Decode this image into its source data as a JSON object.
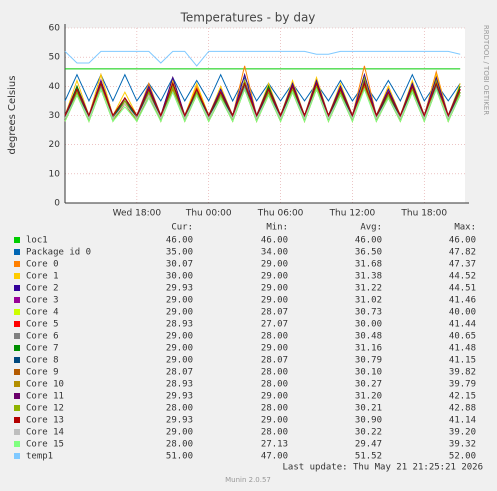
{
  "chart_data": {
    "type": "line",
    "title": "Temperatures - by day",
    "y_label": "degrees Celsius",
    "side_label": "RRDTOOL / TOBI OETIKER",
    "x": [
      0,
      1,
      2,
      3,
      4,
      5,
      6,
      7,
      8,
      9,
      10,
      11,
      12,
      13,
      14,
      15,
      16,
      17,
      18,
      19,
      20,
      21,
      22,
      23,
      24,
      25,
      26,
      27,
      28,
      29,
      30,
      31,
      32,
      33
    ],
    "xlim": [
      0,
      33.4
    ],
    "xticks": [
      {
        "value": 6,
        "label": "Wed 18:00"
      },
      {
        "value": 12,
        "label": "Thu 00:00"
      },
      {
        "value": 18,
        "label": "Thu 06:00"
      },
      {
        "value": 24,
        "label": "Thu 12:00"
      },
      {
        "value": 30,
        "label": "Thu 18:00"
      }
    ],
    "ylim": [
      0,
      60
    ],
    "yticks": [
      0,
      10,
      20,
      30,
      40,
      50,
      60
    ],
    "grid": true,
    "legend_headers": [
      "Cur:",
      "Min:",
      "Avg:",
      "Max:"
    ],
    "series": [
      {
        "name": "loc1",
        "color": "#00cc00",
        "cur": "46.00",
        "min": "46.00",
        "avg": "46.00",
        "max": "46.00",
        "values": [
          46,
          46,
          46,
          46,
          46,
          46,
          46,
          46,
          46,
          46,
          46,
          46,
          46,
          46,
          46,
          46,
          46,
          46,
          46,
          46,
          46,
          46,
          46,
          46,
          46,
          46,
          46,
          46,
          46,
          46,
          46,
          46,
          46,
          46
        ]
      },
      {
        "name": "Package id 0",
        "color": "#0066b3",
        "cur": "35.00",
        "min": "34.00",
        "avg": "36.50",
        "max": "47.82",
        "values": [
          35,
          44,
          35,
          44,
          35,
          44,
          35,
          41,
          35,
          43,
          35,
          42,
          35,
          44,
          35,
          43,
          35,
          41,
          35,
          41,
          35,
          41,
          35,
          42,
          35,
          41,
          35,
          42,
          35,
          44,
          35,
          41,
          35,
          41
        ]
      },
      {
        "name": "Core 0",
        "color": "#ff8000",
        "cur": "30.07",
        "min": "29.00",
        "avg": "31.68",
        "max": "47.37",
        "values": [
          30,
          40,
          30,
          44,
          30,
          35,
          30,
          41,
          30,
          43,
          30,
          40,
          30,
          39,
          30,
          47,
          30,
          40,
          30,
          41,
          30,
          42,
          30,
          40,
          30,
          47,
          30,
          40,
          30,
          41,
          30,
          45,
          30,
          40
        ]
      },
      {
        "name": "Core 1",
        "color": "#ffcc00",
        "cur": "30.00",
        "min": "29.00",
        "avg": "31.38",
        "max": "44.52",
        "values": [
          30,
          42,
          30,
          44,
          30,
          38,
          30,
          40,
          30,
          42,
          30,
          41,
          30,
          40,
          30,
          44,
          30,
          41,
          30,
          42,
          30,
          43,
          30,
          41,
          30,
          44,
          30,
          40,
          30,
          42,
          30,
          44,
          30,
          41
        ]
      },
      {
        "name": "Core 2",
        "color": "#330099",
        "cur": "29.93",
        "min": "29.00",
        "avg": "31.22",
        "max": "44.51",
        "values": [
          30,
          40,
          30,
          42,
          30,
          36,
          30,
          40,
          30,
          43,
          30,
          39,
          30,
          39,
          30,
          44,
          30,
          40,
          30,
          41,
          30,
          42,
          30,
          40,
          30,
          44,
          30,
          39,
          30,
          41,
          30,
          43,
          30,
          40
        ]
      },
      {
        "name": "Core 3",
        "color": "#990099",
        "cur": "29.00",
        "min": "29.00",
        "avg": "31.02",
        "max": "41.46",
        "values": [
          29,
          39,
          29,
          41,
          29,
          36,
          29,
          38,
          29,
          41,
          29,
          39,
          29,
          38,
          29,
          41,
          29,
          39,
          29,
          40,
          29,
          41,
          29,
          39,
          29,
          41,
          29,
          38,
          29,
          40,
          29,
          41,
          29,
          39
        ]
      },
      {
        "name": "Core 4",
        "color": "#ccff00",
        "cur": "29.00",
        "min": "28.07",
        "avg": "30.73",
        "max": "40.00",
        "values": [
          29,
          37,
          29,
          39,
          29,
          34,
          29,
          37,
          29,
          39,
          29,
          38,
          29,
          37,
          29,
          40,
          29,
          38,
          29,
          38,
          29,
          39,
          29,
          38,
          29,
          40,
          29,
          37,
          29,
          38,
          29,
          40,
          29,
          38
        ]
      },
      {
        "name": "Core 5",
        "color": "#ff0000",
        "cur": "28.93",
        "min": "27.07",
        "avg": "30.00",
        "max": "41.44",
        "values": [
          29,
          39,
          29,
          41,
          29,
          36,
          29,
          39,
          29,
          41,
          29,
          38,
          29,
          38,
          29,
          41,
          29,
          39,
          29,
          40,
          29,
          41,
          29,
          39,
          29,
          41,
          29,
          38,
          29,
          40,
          29,
          41,
          29,
          39
        ]
      },
      {
        "name": "Core 6",
        "color": "#808080",
        "cur": "29.00",
        "min": "28.00",
        "avg": "30.48",
        "max": "40.65",
        "values": [
          29,
          38,
          29,
          40,
          29,
          35,
          29,
          38,
          29,
          40,
          29,
          38,
          29,
          37,
          29,
          40,
          29,
          38,
          29,
          39,
          29,
          40,
          29,
          38,
          29,
          40,
          29,
          37,
          29,
          39,
          29,
          40,
          29,
          38
        ]
      },
      {
        "name": "Core 7",
        "color": "#008f00",
        "cur": "29.00",
        "min": "29.00",
        "avg": "31.16",
        "max": "41.48",
        "values": [
          29,
          40,
          29,
          41,
          29,
          36,
          29,
          39,
          29,
          41,
          29,
          39,
          29,
          38,
          29,
          41,
          29,
          40,
          29,
          40,
          29,
          41,
          29,
          39,
          29,
          41,
          29,
          38,
          29,
          40,
          29,
          41,
          29,
          40
        ]
      },
      {
        "name": "Core 8",
        "color": "#00487d",
        "cur": "29.00",
        "min": "28.07",
        "avg": "30.79",
        "max": "41.15",
        "values": [
          29,
          38,
          29,
          41,
          29,
          35,
          29,
          38,
          29,
          40,
          29,
          38,
          29,
          37,
          29,
          41,
          29,
          38,
          29,
          39,
          29,
          40,
          29,
          38,
          29,
          41,
          29,
          37,
          29,
          39,
          29,
          41,
          29,
          38
        ]
      },
      {
        "name": "Core 9",
        "color": "#b35a00",
        "cur": "28.07",
        "min": "28.00",
        "avg": "30.10",
        "max": "39.82",
        "values": [
          28,
          37,
          28,
          39,
          28,
          34,
          28,
          37,
          28,
          39,
          28,
          37,
          28,
          36,
          28,
          39,
          28,
          37,
          28,
          38,
          28,
          39,
          28,
          37,
          28,
          40,
          28,
          36,
          28,
          38,
          28,
          39,
          28,
          37
        ]
      },
      {
        "name": "Core 10",
        "color": "#b38f00",
        "cur": "28.93",
        "min": "28.00",
        "avg": "30.27",
        "max": "39.79",
        "values": [
          29,
          37,
          29,
          39,
          29,
          34,
          29,
          37,
          29,
          39,
          29,
          37,
          29,
          36,
          29,
          39,
          29,
          37,
          29,
          38,
          29,
          39,
          29,
          37,
          29,
          40,
          29,
          36,
          29,
          38,
          29,
          39,
          29,
          37
        ]
      },
      {
        "name": "Core 11",
        "color": "#6b006b",
        "cur": "29.93",
        "min": "29.00",
        "avg": "31.20",
        "max": "42.15",
        "values": [
          30,
          39,
          30,
          42,
          30,
          36,
          30,
          39,
          30,
          41,
          30,
          39,
          30,
          38,
          30,
          42,
          30,
          39,
          30,
          40,
          30,
          41,
          30,
          39,
          30,
          42,
          30,
          38,
          30,
          40,
          30,
          42,
          30,
          39
        ]
      },
      {
        "name": "Core 12",
        "color": "#8fb300",
        "cur": "28.00",
        "min": "28.00",
        "avg": "30.21",
        "max": "42.88",
        "values": [
          28,
          38,
          28,
          41,
          28,
          35,
          28,
          38,
          28,
          40,
          28,
          38,
          28,
          37,
          28,
          42,
          28,
          38,
          28,
          39,
          28,
          40,
          28,
          38,
          28,
          43,
          28,
          37,
          28,
          39,
          28,
          42,
          28,
          38
        ]
      },
      {
        "name": "Core 13",
        "color": "#b30000",
        "cur": "29.93",
        "min": "29.00",
        "avg": "30.90",
        "max": "41.14",
        "values": [
          30,
          39,
          30,
          41,
          30,
          36,
          30,
          39,
          30,
          41,
          30,
          39,
          30,
          38,
          30,
          41,
          30,
          39,
          30,
          40,
          30,
          41,
          30,
          39,
          30,
          41,
          30,
          38,
          30,
          40,
          30,
          41,
          30,
          39
        ]
      },
      {
        "name": "Core 14",
        "color": "#bebebe",
        "cur": "29.00",
        "min": "28.00",
        "avg": "30.22",
        "max": "39.20",
        "values": [
          29,
          37,
          29,
          39,
          29,
          34,
          29,
          37,
          29,
          38,
          29,
          37,
          29,
          36,
          29,
          39,
          29,
          37,
          29,
          38,
          29,
          39,
          29,
          37,
          29,
          39,
          29,
          36,
          29,
          38,
          29,
          39,
          29,
          37
        ]
      },
      {
        "name": "Core 15",
        "color": "#80ff80",
        "cur": "28.00",
        "min": "27.13",
        "avg": "29.47",
        "max": "39.32",
        "values": [
          28,
          37,
          28,
          39,
          28,
          33,
          28,
          36,
          28,
          38,
          28,
          37,
          28,
          36,
          28,
          39,
          28,
          37,
          28,
          38,
          28,
          39,
          28,
          37,
          28,
          39,
          28,
          36,
          28,
          38,
          28,
          39,
          28,
          37
        ]
      },
      {
        "name": "temp1",
        "color": "#80c9ff",
        "cur": "51.00",
        "min": "47.00",
        "avg": "51.52",
        "max": "52.00",
        "values": [
          52,
          48,
          48,
          52,
          52,
          52,
          52,
          52,
          48,
          52,
          52,
          47,
          52,
          52,
          52,
          52,
          52,
          52,
          52,
          52,
          52,
          51,
          51,
          52,
          52,
          52,
          52,
          52,
          52,
          52,
          52,
          52,
          52,
          51
        ]
      }
    ],
    "last_update": "Last update: Thu May 21 21:25:21 2026",
    "footer": "Munin 2.0.57"
  }
}
